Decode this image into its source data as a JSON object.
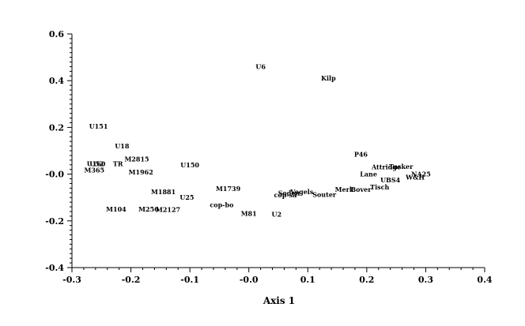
{
  "chart_data": {
    "type": "scatter",
    "title": "",
    "xlabel": "Axis 1",
    "ylabel": "",
    "xlim": [
      -0.3,
      0.4
    ],
    "ylim": [
      -0.4,
      0.6
    ],
    "grid": false,
    "legend": "none",
    "x_ticks": [
      "-0.3",
      "-0.2",
      "-0.1",
      "-0.0",
      "0.1",
      "0.2",
      "0.3",
      "0.4"
    ],
    "x_tick_values": [
      -0.3,
      -0.2,
      -0.1,
      0.0,
      0.1,
      0.2,
      0.3,
      0.4
    ],
    "y_ticks": [
      "0.6",
      "0.4",
      "0.2",
      "-0.0",
      "-0.2",
      "-0.4"
    ],
    "y_tick_values": [
      0.6,
      0.4,
      0.2,
      0.0,
      -0.2,
      -0.4
    ],
    "points": [
      {
        "label": "U6",
        "x": 0.02,
        "y": 0.46
      },
      {
        "label": "Kilp",
        "x": 0.135,
        "y": 0.41
      },
      {
        "label": "U151",
        "x": -0.255,
        "y": 0.205
      },
      {
        "label": "U18",
        "x": -0.215,
        "y": 0.12
      },
      {
        "label": "P46",
        "x": 0.19,
        "y": 0.085
      },
      {
        "label": "M2815",
        "x": -0.19,
        "y": 0.065
      },
      {
        "label": "U160",
        "x": -0.259,
        "y": 0.045
      },
      {
        "label": "U52",
        "x": -0.258,
        "y": 0.045
      },
      {
        "label": "TR",
        "x": -0.222,
        "y": 0.045
      },
      {
        "label": "U150",
        "x": -0.1,
        "y": 0.04
      },
      {
        "label": "Attridge",
        "x": 0.233,
        "y": 0.03
      },
      {
        "label": "Tusker",
        "x": 0.258,
        "y": 0.032
      },
      {
        "label": "M365",
        "x": -0.262,
        "y": 0.018
      },
      {
        "label": "M1962",
        "x": -0.183,
        "y": 0.008
      },
      {
        "label": "Lane",
        "x": 0.203,
        "y": 0.0
      },
      {
        "label": "NA25",
        "x": 0.292,
        "y": 0.0
      },
      {
        "label": "W&H",
        "x": 0.282,
        "y": -0.013
      },
      {
        "label": "UBS4",
        "x": 0.24,
        "y": -0.025
      },
      {
        "label": "Tisch",
        "x": 0.222,
        "y": -0.055
      },
      {
        "label": "M1739",
        "x": -0.035,
        "y": -0.062
      },
      {
        "label": "Merk",
        "x": 0.162,
        "y": -0.065
      },
      {
        "label": "Bover",
        "x": 0.19,
        "y": -0.065
      },
      {
        "label": "Vogels",
        "x": 0.09,
        "y": -0.075
      },
      {
        "label": "M1881",
        "x": -0.145,
        "y": -0.075
      },
      {
        "label": "Soden",
        "x": 0.068,
        "y": -0.08
      },
      {
        "label": "Souter",
        "x": 0.128,
        "y": -0.088
      },
      {
        "label": "cop-sa",
        "x": 0.062,
        "y": -0.09
      },
      {
        "label": "U25",
        "x": -0.105,
        "y": -0.1
      },
      {
        "label": "cop-bo",
        "x": -0.046,
        "y": -0.132
      },
      {
        "label": "M104",
        "x": -0.225,
        "y": -0.15
      },
      {
        "label": "M256",
        "x": -0.17,
        "y": -0.15
      },
      {
        "label": "M2127",
        "x": -0.137,
        "y": -0.152
      },
      {
        "label": "M81",
        "x": 0.0,
        "y": -0.168
      },
      {
        "label": "U2",
        "x": 0.047,
        "y": -0.172
      }
    ]
  }
}
